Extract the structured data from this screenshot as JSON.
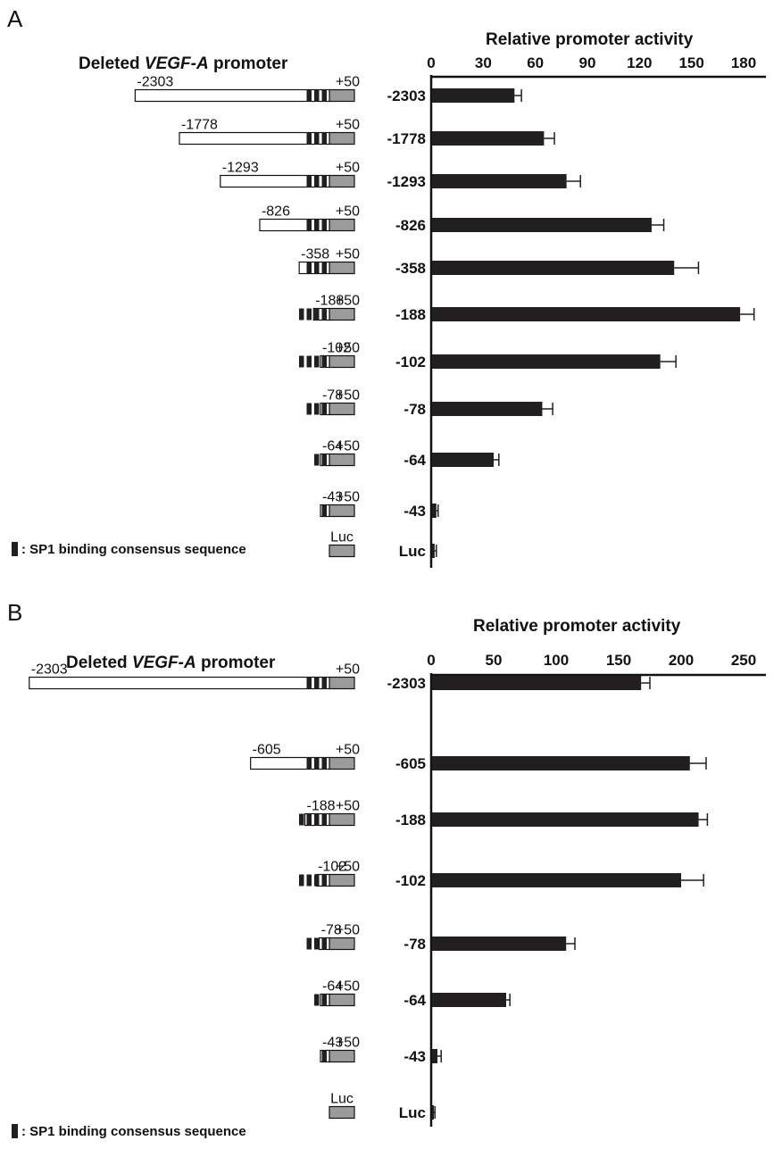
{
  "chart_data": [
    {
      "panel": "A",
      "type": "bar",
      "orientation": "horizontal",
      "construct_title": "Deleted ",
      "construct_title_gene": "VEGF-A",
      "construct_title_suffix": " promoter",
      "axis_label": "Relative promoter activity",
      "xlim": [
        0,
        180
      ],
      "ticks": [
        "0",
        "30",
        "60",
        "90",
        "120",
        "150",
        "180"
      ],
      "categories": [
        "-2303",
        "-1778",
        "-1293",
        "-826",
        "-358",
        "-188",
        "-102",
        "-78",
        "-64",
        "-43",
        "Luc"
      ],
      "values": [
        48,
        65,
        78,
        127,
        140,
        178,
        132,
        64,
        36,
        3,
        2
      ],
      "errors": [
        4,
        6,
        8,
        7,
        14,
        8,
        9,
        6,
        3,
        1,
        1
      ],
      "constructs": [
        {
          "start": "-2303",
          "end": "+50",
          "sp1_sites": 3
        },
        {
          "start": "-1778",
          "end": "+50",
          "sp1_sites": 3
        },
        {
          "start": "-1293",
          "end": "+50",
          "sp1_sites": 3
        },
        {
          "start": "-826",
          "end": "+50",
          "sp1_sites": 3
        },
        {
          "start": "-358",
          "end": "+50",
          "sp1_sites": 3
        },
        {
          "start": "-188",
          "end": "+50",
          "sp1_sites": 4
        },
        {
          "start": "-102",
          "end": "+50",
          "sp1_sites": 4
        },
        {
          "start": "-78",
          "end": "+50",
          "sp1_sites": 3
        },
        {
          "start": "-64",
          "end": "+50",
          "sp1_sites": 2
        },
        {
          "start": "-43",
          "end": "+50",
          "sp1_sites": 1
        },
        {
          "start": "",
          "end": "Luc",
          "sp1_sites": 0
        }
      ],
      "legend": ": SP1 binding consensus sequence"
    },
    {
      "panel": "B",
      "type": "bar",
      "orientation": "horizontal",
      "construct_title": "Deleted ",
      "construct_title_gene": "VEGF-A",
      "construct_title_suffix": " promoter",
      "axis_label": "Relative promoter activity",
      "xlim": [
        0,
        250
      ],
      "ticks": [
        "0",
        "50",
        "100",
        "150",
        "200",
        "250"
      ],
      "categories": [
        "-2303",
        "-605",
        "-188",
        "-102",
        "-78",
        "-64",
        "-43",
        "Luc"
      ],
      "values": [
        168,
        207,
        214,
        200,
        108,
        60,
        5,
        2
      ],
      "errors": [
        7,
        13,
        7,
        18,
        7,
        3,
        3,
        1
      ],
      "constructs": [
        {
          "start": "-2303",
          "end": "+50",
          "sp1_sites": 3
        },
        {
          "start": "-605",
          "end": "+50",
          "sp1_sites": 3
        },
        {
          "start": "-188",
          "end": "+50",
          "sp1_sites": 4
        },
        {
          "start": "-102",
          "end": "+50",
          "sp1_sites": 4
        },
        {
          "start": "-78",
          "end": "+50",
          "sp1_sites": 3
        },
        {
          "start": "-64",
          "end": "+50",
          "sp1_sites": 2
        },
        {
          "start": "-43",
          "end": "+50",
          "sp1_sites": 1
        },
        {
          "start": "",
          "end": "Luc",
          "sp1_sites": 0
        }
      ],
      "legend": ": SP1 binding consensus sequence"
    }
  ],
  "colors": {
    "bar": "#231f20",
    "luc_box": "#9b9b9b",
    "promoter_box": "#ffffff",
    "sp1_block": "#231f20",
    "axis": "#111111"
  }
}
